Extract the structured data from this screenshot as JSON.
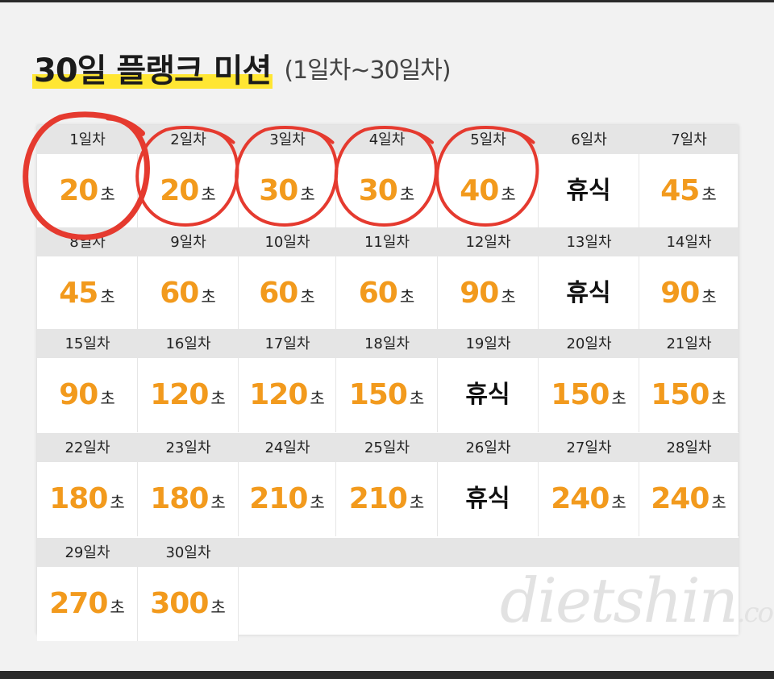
{
  "title": {
    "main": "30일 플랭크 미션",
    "sub": "(1일차~30일차)"
  },
  "unit": "초",
  "rest_label": "휴식",
  "days": [
    {
      "label": "1일차",
      "value": "20"
    },
    {
      "label": "2일차",
      "value": "20"
    },
    {
      "label": "3일차",
      "value": "30"
    },
    {
      "label": "4일차",
      "value": "30"
    },
    {
      "label": "5일차",
      "value": "40"
    },
    {
      "label": "6일차",
      "value": null
    },
    {
      "label": "7일차",
      "value": "45"
    },
    {
      "label": "8일차",
      "value": "45"
    },
    {
      "label": "9일차",
      "value": "60"
    },
    {
      "label": "10일차",
      "value": "60"
    },
    {
      "label": "11일차",
      "value": "60"
    },
    {
      "label": "12일차",
      "value": "90"
    },
    {
      "label": "13일차",
      "value": null
    },
    {
      "label": "14일차",
      "value": "90"
    },
    {
      "label": "15일차",
      "value": "90"
    },
    {
      "label": "16일차",
      "value": "120"
    },
    {
      "label": "17일차",
      "value": "120"
    },
    {
      "label": "18일차",
      "value": "150"
    },
    {
      "label": "19일차",
      "value": null
    },
    {
      "label": "20일차",
      "value": "150"
    },
    {
      "label": "21일차",
      "value": "150"
    },
    {
      "label": "22일차",
      "value": "180"
    },
    {
      "label": "23일차",
      "value": "180"
    },
    {
      "label": "24일차",
      "value": "210"
    },
    {
      "label": "25일차",
      "value": "210"
    },
    {
      "label": "26일차",
      "value": null
    },
    {
      "label": "27일차",
      "value": "240"
    },
    {
      "label": "28일차",
      "value": "240"
    },
    {
      "label": "29일차",
      "value": "270"
    },
    {
      "label": "30일차",
      "value": "300"
    }
  ],
  "completed_days": [
    1,
    2,
    3,
    4,
    5
  ],
  "watermark": {
    "name": "dietshin",
    "tld": ".com"
  },
  "colors": {
    "accent": "#f29a1d",
    "highlight": "#ffe633",
    "marker": "#e53a2f"
  }
}
